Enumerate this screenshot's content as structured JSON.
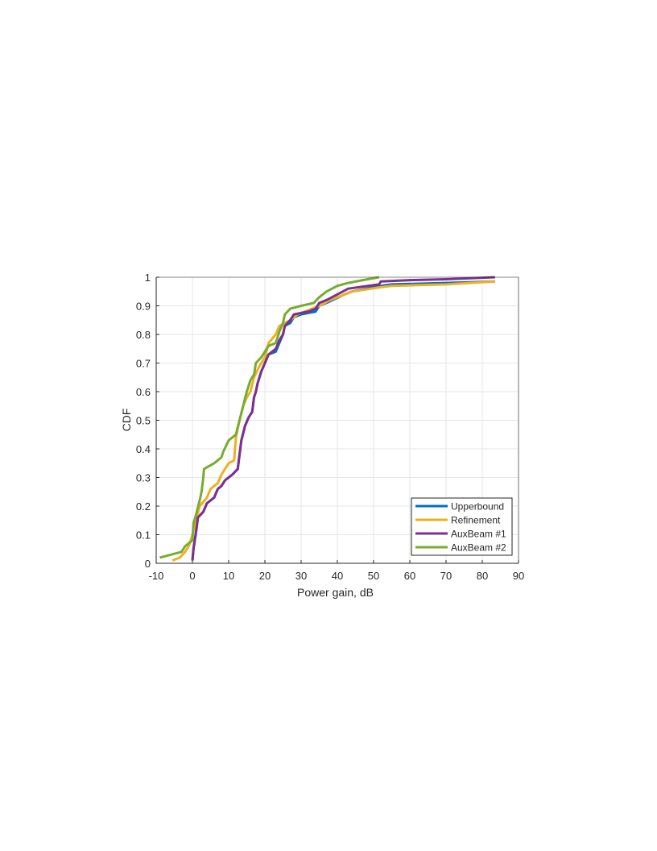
{
  "chart_data": {
    "type": "line",
    "title": "",
    "xlabel": "Power gain, dB",
    "ylabel": "CDF",
    "xlim": [
      -10,
      90
    ],
    "ylim": [
      0,
      1
    ],
    "xticks": [
      -10,
      0,
      10,
      20,
      30,
      40,
      50,
      60,
      70,
      80,
      90
    ],
    "yticks": [
      0,
      0.1,
      0.2,
      0.3,
      0.4,
      0.5,
      0.6,
      0.7,
      0.8,
      0.9,
      1
    ],
    "xtick_labels": [
      "-10",
      "0",
      "10",
      "20",
      "30",
      "40",
      "50",
      "60",
      "70",
      "80",
      "90"
    ],
    "ytick_labels": [
      "0",
      "0.1",
      "0.2",
      "0.3",
      "0.4",
      "0.5",
      "0.6",
      "0.7",
      "0.8",
      "0.9",
      "1"
    ],
    "grid": true,
    "legend_position": "bottom-right",
    "series": [
      {
        "name": "Upperbound",
        "color": "#0072BD",
        "points": [
          [
            0,
            0.01
          ],
          [
            0.3,
            0.05
          ],
          [
            1,
            0.11
          ],
          [
            1.5,
            0.16
          ],
          [
            3,
            0.18
          ],
          [
            4,
            0.21
          ],
          [
            6,
            0.23
          ],
          [
            7,
            0.26
          ],
          [
            8,
            0.27
          ],
          [
            9,
            0.29
          ],
          [
            11,
            0.31
          ],
          [
            12.5,
            0.33
          ],
          [
            13,
            0.38
          ],
          [
            13.5,
            0.43
          ],
          [
            14.5,
            0.48
          ],
          [
            15.5,
            0.51
          ],
          [
            16.5,
            0.53
          ],
          [
            17,
            0.58
          ],
          [
            17.5,
            0.6
          ],
          [
            18,
            0.63
          ],
          [
            19,
            0.67
          ],
          [
            20,
            0.7
          ],
          [
            21,
            0.73
          ],
          [
            23,
            0.74
          ],
          [
            24,
            0.77
          ],
          [
            25,
            0.8
          ],
          [
            25.5,
            0.83
          ],
          [
            27,
            0.84
          ],
          [
            28,
            0.86
          ],
          [
            30,
            0.87
          ],
          [
            34,
            0.88
          ],
          [
            35,
            0.9
          ],
          [
            37,
            0.91
          ],
          [
            42,
            0.94
          ],
          [
            44,
            0.95
          ],
          [
            52,
            0.97
          ],
          [
            55,
            0.975
          ],
          [
            70,
            0.98
          ],
          [
            83.5,
            0.985
          ]
        ]
      },
      {
        "name": "Refinement",
        "color": "#EDB120",
        "points": [
          [
            -5.5,
            0.01
          ],
          [
            -3.5,
            0.02
          ],
          [
            -2,
            0.04
          ],
          [
            -1,
            0.06
          ],
          [
            0,
            0.1
          ],
          [
            1,
            0.15
          ],
          [
            2,
            0.2
          ],
          [
            4,
            0.23
          ],
          [
            5,
            0.26
          ],
          [
            7,
            0.28
          ],
          [
            8,
            0.31
          ],
          [
            10,
            0.35
          ],
          [
            11.5,
            0.36
          ],
          [
            12,
            0.44
          ],
          [
            13,
            0.5
          ],
          [
            14,
            0.55
          ],
          [
            15,
            0.58
          ],
          [
            16,
            0.6
          ],
          [
            17,
            0.65
          ],
          [
            18.5,
            0.69
          ],
          [
            20,
            0.72
          ],
          [
            21,
            0.77
          ],
          [
            23,
            0.8
          ],
          [
            24,
            0.83
          ],
          [
            25.5,
            0.84
          ],
          [
            27,
            0.85
          ],
          [
            29,
            0.87
          ],
          [
            31,
            0.88
          ],
          [
            33,
            0.89
          ],
          [
            35,
            0.9
          ],
          [
            38,
            0.92
          ],
          [
            42,
            0.94
          ],
          [
            44,
            0.95
          ],
          [
            52,
            0.965
          ],
          [
            55,
            0.97
          ],
          [
            70,
            0.975
          ],
          [
            83.5,
            0.985
          ]
        ]
      },
      {
        "name": "AuxBeam #1",
        "color": "#7E2F8E",
        "points": [
          [
            0,
            0.01
          ],
          [
            0.3,
            0.05
          ],
          [
            1,
            0.11
          ],
          [
            1.5,
            0.16
          ],
          [
            3,
            0.18
          ],
          [
            4,
            0.21
          ],
          [
            6,
            0.23
          ],
          [
            7,
            0.26
          ],
          [
            8,
            0.27
          ],
          [
            9,
            0.29
          ],
          [
            11,
            0.31
          ],
          [
            12.5,
            0.33
          ],
          [
            13,
            0.38
          ],
          [
            13.5,
            0.43
          ],
          [
            14.5,
            0.48
          ],
          [
            15.5,
            0.51
          ],
          [
            16.5,
            0.53
          ],
          [
            17,
            0.58
          ],
          [
            17.5,
            0.6
          ],
          [
            18,
            0.63
          ],
          [
            19,
            0.67
          ],
          [
            20,
            0.7
          ],
          [
            21,
            0.73
          ],
          [
            23,
            0.75
          ],
          [
            24,
            0.78
          ],
          [
            25,
            0.8
          ],
          [
            25.5,
            0.83
          ],
          [
            27,
            0.85
          ],
          [
            28,
            0.87
          ],
          [
            32,
            0.88
          ],
          [
            34,
            0.89
          ],
          [
            35,
            0.91
          ],
          [
            37,
            0.92
          ],
          [
            40,
            0.94
          ],
          [
            43,
            0.96
          ],
          [
            51.5,
            0.975
          ],
          [
            52,
            0.985
          ],
          [
            60,
            0.99
          ],
          [
            70,
            0.993
          ],
          [
            83.5,
            1.0
          ]
        ]
      },
      {
        "name": "AuxBeam #2",
        "color": "#77AC30",
        "points": [
          [
            -9,
            0.02
          ],
          [
            -3,
            0.04
          ],
          [
            -2,
            0.06
          ],
          [
            0,
            0.08
          ],
          [
            0.3,
            0.14
          ],
          [
            1,
            0.17
          ],
          [
            2,
            0.22
          ],
          [
            2.5,
            0.25
          ],
          [
            3,
            0.3
          ],
          [
            3.2,
            0.33
          ],
          [
            6,
            0.35
          ],
          [
            8,
            0.37
          ],
          [
            8.5,
            0.39
          ],
          [
            10,
            0.43
          ],
          [
            12,
            0.45
          ],
          [
            13,
            0.5
          ],
          [
            14,
            0.55
          ],
          [
            15,
            0.6
          ],
          [
            16,
            0.64
          ],
          [
            17,
            0.66
          ],
          [
            17.5,
            0.7
          ],
          [
            19,
            0.72
          ],
          [
            21,
            0.76
          ],
          [
            23,
            0.77
          ],
          [
            24,
            0.81
          ],
          [
            25,
            0.84
          ],
          [
            25.5,
            0.87
          ],
          [
            27,
            0.89
          ],
          [
            30,
            0.9
          ],
          [
            33.5,
            0.91
          ],
          [
            35,
            0.93
          ],
          [
            37,
            0.95
          ],
          [
            40,
            0.97
          ],
          [
            43,
            0.98
          ],
          [
            47,
            0.99
          ],
          [
            51.5,
            1.0
          ]
        ]
      }
    ]
  }
}
